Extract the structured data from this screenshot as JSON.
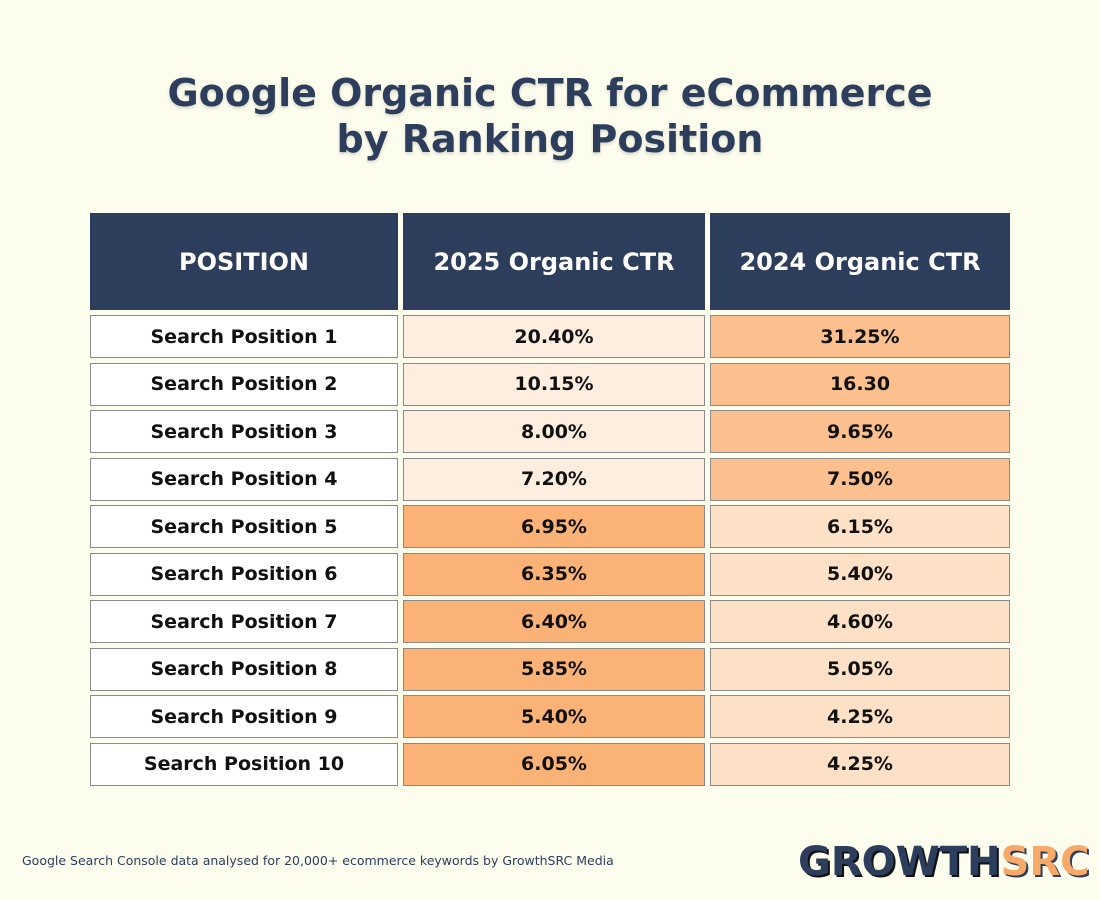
{
  "title": {
    "line1": "Google Organic CTR for eCommerce",
    "line2": "by Ranking Position"
  },
  "chart_data": {
    "type": "table",
    "columns": [
      "POSITION",
      "2025 Organic CTR",
      "2024 Organic CTR"
    ],
    "rows": [
      [
        "Search Position 1",
        "20.40%",
        "31.25%"
      ],
      [
        "Search Position 2",
        "10.15%",
        "16.30"
      ],
      [
        "Search Position 3",
        "8.00%",
        "9.65%"
      ],
      [
        "Search Position 4",
        "7.20%",
        "7.50%"
      ],
      [
        "Search Position 5",
        "6.95%",
        "6.15%"
      ],
      [
        "Search Position 6",
        "6.35%",
        "5.40%"
      ],
      [
        "Search Position 7",
        "6.40%",
        "4.60%"
      ],
      [
        "Search Position 8",
        "5.85%",
        "5.05%"
      ],
      [
        "Search Position 9",
        "5.40%",
        "4.25%"
      ],
      [
        "Search Position 10",
        "6.05%",
        "4.25%"
      ]
    ],
    "cell_colors": [
      [
        "#ffffff",
        "#fdeee0",
        "#fbc08d"
      ],
      [
        "#ffffff",
        "#fdeee0",
        "#fbc08d"
      ],
      [
        "#ffffff",
        "#fdeee0",
        "#fbc08d"
      ],
      [
        "#ffffff",
        "#fdeee0",
        "#fbc08d"
      ],
      [
        "#ffffff",
        "#fbb277",
        "#fde1c6"
      ],
      [
        "#ffffff",
        "#fbb277",
        "#fde1c6"
      ],
      [
        "#ffffff",
        "#fbb277",
        "#fde1c6"
      ],
      [
        "#ffffff",
        "#fbb277",
        "#fde1c6"
      ],
      [
        "#ffffff",
        "#fbb277",
        "#fde1c6"
      ],
      [
        "#ffffff",
        "#fbb277",
        "#fde1c6"
      ]
    ],
    "header_color": "#2d3e5c"
  },
  "footnote": "Google Search Console data analysed for 20,000+ ecommerce keywords by GrowthSRC Media",
  "logo": {
    "part1": "GROWTH",
    "part2": "SRC",
    "color1": "#2d3e5c",
    "color2": "#f7a96a"
  }
}
